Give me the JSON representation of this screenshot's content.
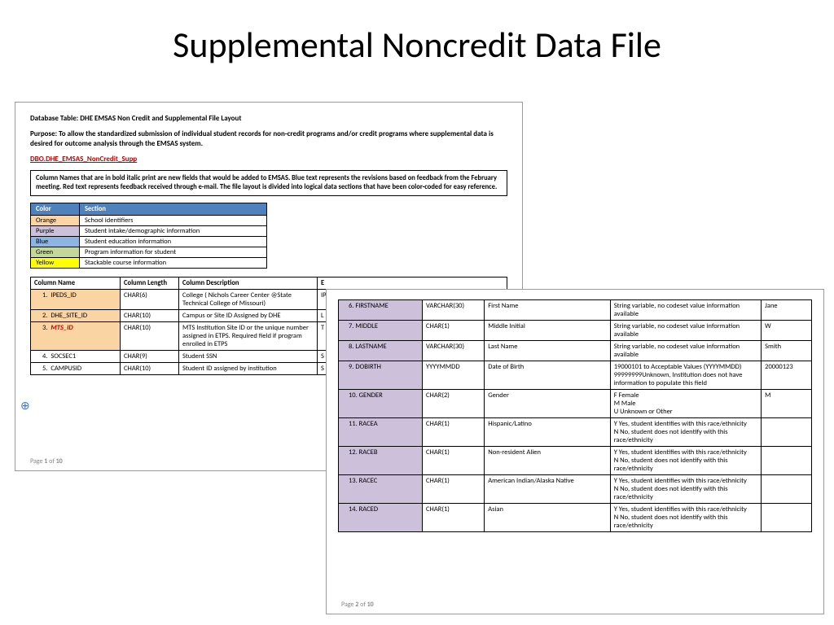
{
  "title": "Supplemental Noncredit Data File",
  "page1": {
    "db_table_label": "Database Table:  DHE EMSAS Non Credit and Supplemental File Layout",
    "purpose_label": "Purpose: To allow the standardized submission of individual student records for non-credit programs and/or credit programs where supplemental data is desired for outcome analysis through the EMSAS system.",
    "link_text": "DBO.DHE_EMSAS_NonCredit_Supp",
    "infobox_text": "Column Names that are in bold italic print are new fields that would be added to EMSAS.  Blue text represents the revisions based on feedback from the February meeting.  Red text represents feedback received through e-mail.  The file layout is divided into logical data sections that have been color-coded for easy reference.",
    "legend": {
      "header_color": "#4f81bd",
      "cols": [
        "Color",
        "Section"
      ],
      "rows": [
        {
          "label": "Orange",
          "desc": "School identifiers",
          "bg": "#fbd4a4"
        },
        {
          "label": "Purple",
          "desc": "Student intake/demographic information",
          "bg": "#ccc0da"
        },
        {
          "label": "Blue",
          "desc": "Student education information",
          "bg": "#8db4e2"
        },
        {
          "label": "Green",
          "desc": "Program information for student",
          "bg": "#c4d79b"
        },
        {
          "label": "Yellow",
          "desc": "Stackable course information",
          "bg": "#ffff00"
        }
      ],
      "col_widths": [
        "60px",
        "230px"
      ]
    },
    "table": {
      "cols": [
        "Column Name",
        "Column Length",
        "Column Description",
        "E"
      ],
      "col_widths": [
        "110px",
        "72px",
        "170px",
        "auto"
      ],
      "rows": [
        {
          "n": "1.",
          "name": "IPEDS_ID",
          "len": "CHAR(6)",
          "desc": "College ( Nichols Career Center @State Technical College of Missouri)",
          "extra": "IP",
          "bg": "#fbd4a4",
          "bold": false,
          "red": false
        },
        {
          "n": "2.",
          "name": "DHE_SITE_ID",
          "len": "CHAR(10)",
          "desc": "Campus or Site ID Assigned by DHE",
          "extra": "L",
          "bg": "#fbd4a4",
          "bold": false,
          "red": false
        },
        {
          "n": "3.",
          "name": "MTS_ID",
          "len": "CHAR(10)",
          "desc": "MTS Institution Site ID or the unique number assigned in ETPS. Required field if program enrolled in ETPS",
          "extra": "T D",
          "bg": "#fbd4a4",
          "bold": true,
          "red": true
        },
        {
          "n": "4.",
          "name": "SOCSEC1",
          "len": "CHAR(9)",
          "desc": "Student SSN",
          "extra": "S in",
          "bg": "#ffffff",
          "bold": false,
          "red": false
        },
        {
          "n": "5.",
          "name": "CAMPUSID",
          "len": "CHAR(10)",
          "desc": "Student ID assigned by institution",
          "extra": "S",
          "bg": "#ffffff",
          "bold": false,
          "red": false
        }
      ]
    },
    "footer_prefix": "Page ",
    "footer_page": "1",
    "footer_of": " of ",
    "footer_total": "10"
  },
  "page2": {
    "purple_bg": "#ccc0da",
    "col_widths": [
      "100px",
      "74px",
      "150px",
      "180px",
      "60px"
    ],
    "rows": [
      {
        "n": "6.",
        "name": "FIRSTNAME",
        "len": "VARCHAR(30)",
        "desc": "First Name",
        "valid": "String variable, no codeset value information available",
        "ex": "Jane"
      },
      {
        "n": "7.",
        "name": "MIDDLE",
        "len": "CHAR(1)",
        "desc": "Middle Initial",
        "valid": "String variable, no codeset value information available",
        "ex": "W"
      },
      {
        "n": "8.",
        "name": "LASTNAME",
        "len": "VARCHAR(30)",
        "desc": "Last Name",
        "valid": "String variable, no codeset value information available",
        "ex": "Smith"
      },
      {
        "n": "9.",
        "name": "DOBIRTH",
        "len": "YYYYMMDD",
        "desc": "Date of Birth",
        "valid": "19000101 to Acceptable Values (YYYYMMDD)\n99999999Unknown, Institution does not have information to populate this field",
        "ex": "20000123"
      },
      {
        "n": "10.",
        "name": "GENDER",
        "len": "CHAR(2)",
        "desc": "Gender",
        "valid": "F Female\nM Male\nU Unknown or Other",
        "ex": "M"
      },
      {
        "n": "11.",
        "name": "RACEA",
        "len": "CHAR(1)",
        "desc": "Hispanic/Latino",
        "valid": "Y Yes, student identifies with this race/ethnicity\nN No, student does not identify with this race/ethnicity",
        "ex": ""
      },
      {
        "n": "12.",
        "name": "RACEB",
        "len": "CHAR(1)",
        "desc": "Non-resident Alien",
        "valid": "Y Yes, student identifies with this race/ethnicity\nN No, student does not identify with this race/ethnicity",
        "ex": ""
      },
      {
        "n": "13.",
        "name": "RACEC",
        "len": "CHAR(1)",
        "desc": "American Indian/Alaska Native",
        "valid": "Y Yes, student identifies with this race/ethnicity\nN No, student does not identify with this race/ethnicity",
        "ex": ""
      },
      {
        "n": "14.",
        "name": "RACED",
        "len": "CHAR(1)",
        "desc": "Asian",
        "valid": "Y Yes, student identifies with this race/ethnicity\nN No, student does not identify with this race/ethnicity",
        "ex": ""
      }
    ],
    "footer_prefix": "Page ",
    "footer_page": "2",
    "footer_of": " of ",
    "footer_total": "10"
  }
}
